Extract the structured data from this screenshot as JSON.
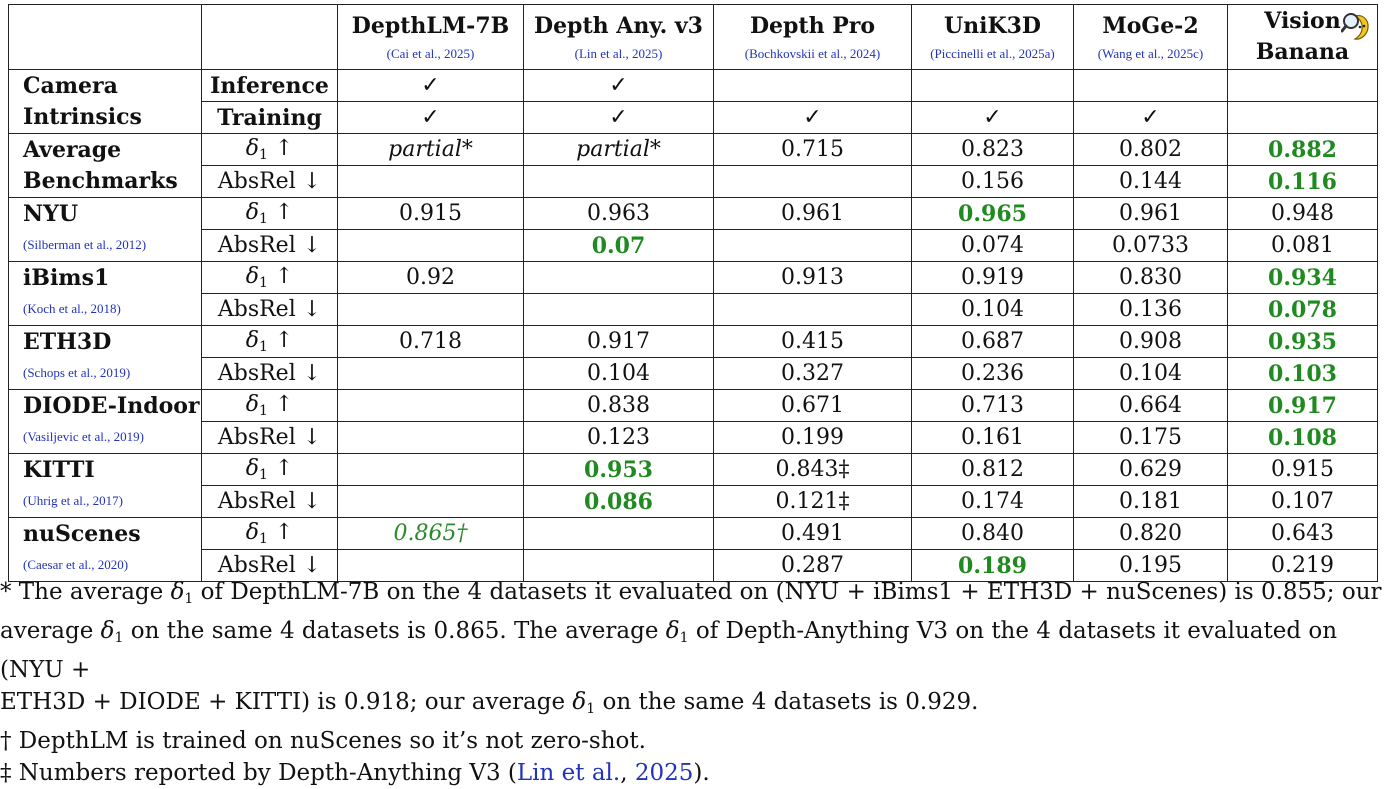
{
  "header": {
    "models": [
      {
        "name": "DepthLM-7B",
        "cite": "(Cai et al., 2025)"
      },
      {
        "name": "Depth Any. v3",
        "cite": "(Lin et al., 2025)"
      },
      {
        "name": "Depth Pro",
        "cite": "(Bochkovskii et al., 2024)"
      },
      {
        "name": "UniK3D",
        "cite": "(Piccinelli et al., 2025a)"
      },
      {
        "name": "MoGe-2",
        "cite": "(Wang et al., 2025c)"
      }
    ],
    "vision_banana": {
      "line1": "Vision",
      "line2": "Banana",
      "icon": "magnifier-banana-icon"
    }
  },
  "camera": {
    "label1": "Camera",
    "label2": "Intrinsics",
    "inference_label": "Inference",
    "training_label": "Training",
    "inference": [
      "✓",
      "✓",
      "",
      "",
      "",
      ""
    ],
    "training": [
      "✓",
      "✓",
      "✓",
      "✓",
      "✓",
      ""
    ]
  },
  "average": {
    "label1": "Average",
    "label2": "Benchmarks",
    "delta_values": [
      "partial*",
      "partial*",
      "0.715",
      "0.823",
      "0.802",
      "0.882"
    ],
    "absrel_values": [
      "",
      "",
      "",
      "0.156",
      "0.144",
      "0.116"
    ]
  },
  "metrics": {
    "delta": "δ",
    "delta_sub": "1",
    "up": " ↑",
    "absrel": "AbsRel ↓"
  },
  "datasets": [
    {
      "name": "NYU",
      "cite": "(Silberman et al., 2012)",
      "delta": [
        "0.915",
        "0.963",
        "0.961",
        "0.965",
        "0.961",
        "0.948"
      ],
      "absrel": [
        "",
        "0.07",
        "",
        "0.074",
        "0.0733",
        "0.081"
      ]
    },
    {
      "name": "iBims1",
      "cite": "(Koch et al., 2018)",
      "delta": [
        "0.92",
        "",
        "0.913",
        "0.919",
        "0.830",
        "0.934"
      ],
      "absrel": [
        "",
        "",
        "",
        "0.104",
        "0.136",
        "0.078"
      ]
    },
    {
      "name": "ETH3D",
      "cite": "(Schops et al., 2019)",
      "delta": [
        "0.718",
        "0.917",
        "0.415",
        "0.687",
        "0.908",
        "0.935"
      ],
      "absrel": [
        "",
        "0.104",
        "0.327",
        "0.236",
        "0.104",
        "0.103"
      ]
    },
    {
      "name": "DIODE-Indoor",
      "cite": "(Vasiljevic et al., 2019)",
      "delta": [
        "",
        "0.838",
        "0.671",
        "0.713",
        "0.664",
        "0.917"
      ],
      "absrel": [
        "",
        "0.123",
        "0.199",
        "0.161",
        "0.175",
        "0.108"
      ]
    },
    {
      "name": "KITTI",
      "cite": "(Uhrig et al., 2017)",
      "delta": [
        "",
        "0.953",
        "0.843‡",
        "0.812",
        "0.629",
        "0.915"
      ],
      "absrel": [
        "",
        "0.086",
        "0.121‡",
        "0.174",
        "0.181",
        "0.107"
      ]
    },
    {
      "name": "nuScenes",
      "cite": "(Caesar et al., 2020)",
      "delta": [
        "0.865†",
        "",
        "0.491",
        "0.840",
        "0.820",
        "0.643"
      ],
      "absrel": [
        "",
        "",
        "0.287",
        "0.189",
        "0.195",
        "0.219"
      ]
    }
  ],
  "highlight_color": "#1f8a1f",
  "citation_color": "#2233bb",
  "notes": {
    "n1_a": "* The average ",
    "n1_b": " of DepthLM-7B on the 4 datasets it evaluated on (NYU + iBims1 + ETH3D + nuScenes) is 0.855; our",
    "n2_a": "average ",
    "n2_b": " on the same 4 datasets is 0.865. The average ",
    "n2_c": " of Depth-Anything V3 on the 4 datasets it evaluated on (NYU +",
    "n3_a": "ETH3D + DIODE + KITTI) is 0.918; our average ",
    "n3_b": " on the same 4 datasets is 0.929.",
    "n4": "† DepthLM is trained on nuScenes so it’s not zero-shot.",
    "n5_a": "‡ Numbers reported by Depth-Anything V3 (",
    "n5_cite_author": "Lin et al.",
    "n5_mid": ", ",
    "n5_cite_year": "2025",
    "n5_b": ")."
  }
}
